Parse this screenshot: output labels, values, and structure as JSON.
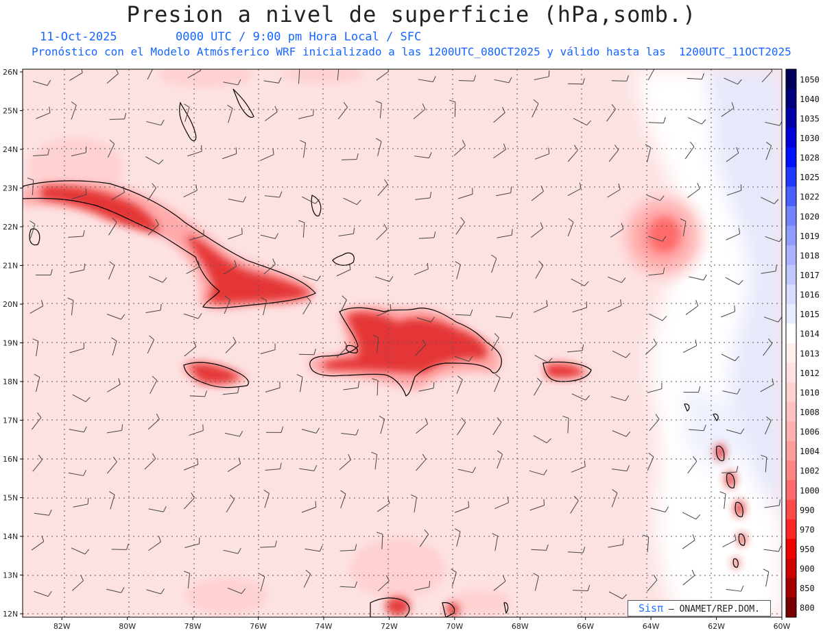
{
  "header": {
    "title": "Presion a nivel de superficie (hPa,somb.)",
    "date": "11-Oct-2025",
    "time_line": "0000 UTC / 9:00 pm Hora Local / SFC",
    "model_line": "Pronóstico con el Modelo Atmósferico WRF inicializado a las 1200UTC_08OCT2025 y válido hasta las  1200UTC_11OCT2025"
  },
  "map": {
    "lat_labels": [
      "26N",
      "25N",
      "24N",
      "23N",
      "22N",
      "21N",
      "20N",
      "19N",
      "18N",
      "17N",
      "16N",
      "15N",
      "14N",
      "13N",
      "12N"
    ],
    "lon_labels": [
      "82W",
      "80W",
      "78W",
      "76W",
      "74W",
      "72W",
      "70W",
      "68W",
      "66W",
      "64W",
      "62W",
      "60W"
    ],
    "lat_range": [
      12,
      26
    ],
    "lon_range": [
      -83.2,
      -60
    ],
    "grid": true,
    "land_color": "#e02020",
    "sea_color": "#fde2e2",
    "high_color": "#e6e8fb"
  },
  "colorbar": {
    "labels": [
      "1050",
      "1040",
      "1035",
      "1030",
      "1028",
      "1025",
      "1022",
      "1020",
      "1019",
      "1018",
      "1017",
      "1016",
      "1015",
      "1014",
      "1013",
      "1012",
      "1010",
      "1008",
      "1006",
      "1004",
      "1002",
      "1000",
      "990",
      "970",
      "950",
      "900",
      "850",
      "800"
    ],
    "colors": [
      "#00005a",
      "#00007d",
      "#0000a8",
      "#0000d8",
      "#0010ff",
      "#2038ff",
      "#4b5fff",
      "#7484ff",
      "#8f9bff",
      "#a9b2ff",
      "#c2c8ff",
      "#d7dbff",
      "#e8eaff",
      "#ffffff",
      "#fff0f0",
      "#ffe1e1",
      "#ffd2d2",
      "#ffc2c2",
      "#ffb0b0",
      "#ff9c9c",
      "#ff8585",
      "#ff6a6a",
      "#ff4a4a",
      "#ff2525",
      "#ee0000",
      "#cc0000",
      "#a30000",
      "#780000"
    ]
  },
  "credit": {
    "brand": "Sisπ",
    "text": "– ONAMET/REP.DOM."
  }
}
